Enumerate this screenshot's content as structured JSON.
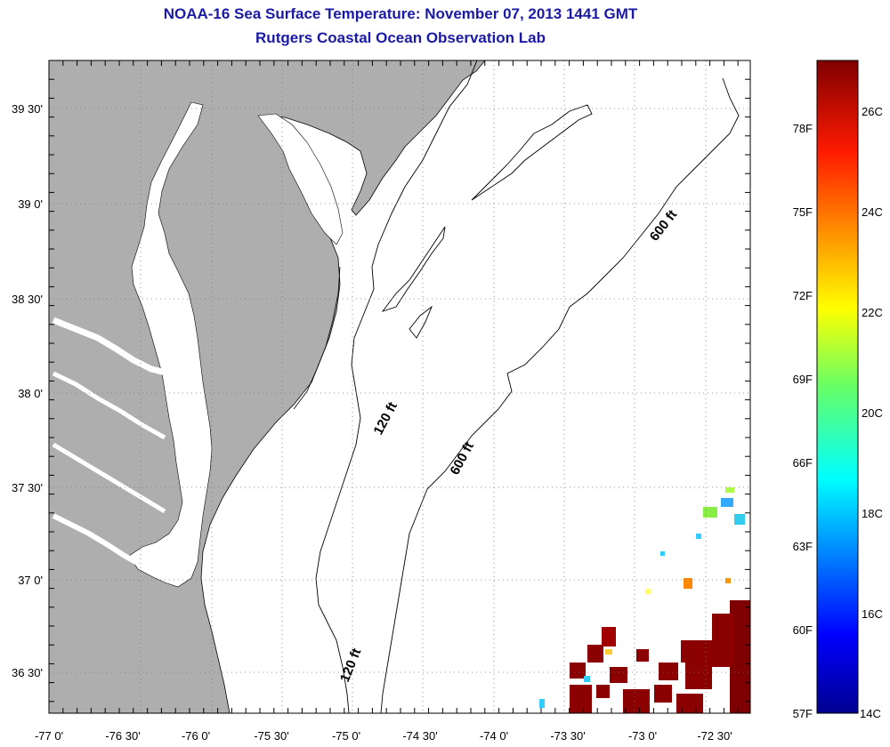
{
  "header": {
    "title": "NOAA-16 Sea Surface Temperature:  November 07, 2013 1441 GMT",
    "subtitle": "Rutgers Coastal Ocean Observation Lab"
  },
  "map": {
    "lon_ticks": [
      "-77 0'",
      "-76 30'",
      "-76 0'",
      "-75 30'",
      "-75 0'",
      "-74 30'",
      "-74 0'",
      "-73 30'",
      "-73 0'",
      "-72 30'"
    ],
    "lat_ticks": [
      "39 30'",
      "39 0'",
      "38 30'",
      "38 0'",
      "37 30'",
      "37 0'",
      "36 30'"
    ],
    "contours": [
      "120 ft",
      "600 ft",
      "600 ft",
      "120 ft"
    ],
    "colors": {
      "land": "#aeaeae",
      "water": "#ffffff",
      "frame": "#000000",
      "grid": "#777777"
    }
  },
  "colorbar": {
    "fahrenheit": [
      "78F",
      "75F",
      "72F",
      "69F",
      "66F",
      "63F",
      "60F",
      "57F"
    ],
    "celsius": [
      "26C",
      "24C",
      "22C",
      "20C",
      "18C",
      "16C",
      "14C"
    ]
  }
}
